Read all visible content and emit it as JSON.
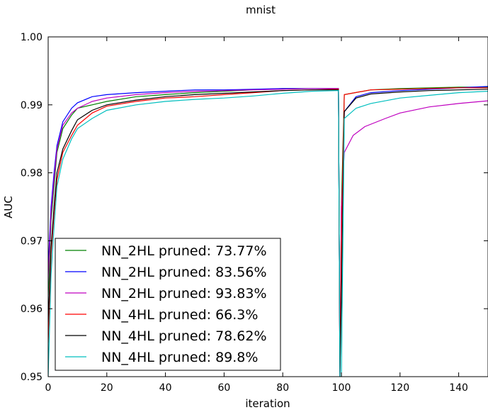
{
  "chart_data": {
    "type": "line",
    "title": "mnist",
    "xlabel": "iteration",
    "ylabel": "AUC",
    "xlim": [
      0,
      150
    ],
    "ylim": [
      0.95,
      1.0
    ],
    "xticks": [
      0,
      20,
      40,
      60,
      80,
      100,
      120,
      140
    ],
    "xtick_labels": [
      "0",
      "20",
      "40",
      "60",
      "80",
      "100",
      "120",
      "140"
    ],
    "yticks": [
      0.95,
      0.96,
      0.97,
      0.98,
      0.99,
      1.0
    ],
    "ytick_labels": [
      "0.95",
      "0.96",
      "0.97",
      "0.98",
      "0.99",
      "1.00"
    ],
    "grid": false,
    "legend_position": "lower-left",
    "series": [
      {
        "name": "NN_2HL pruned: 73.77%",
        "color": "#008000",
        "points": [
          [
            0,
            0.962
          ],
          [
            1,
            0.973
          ],
          [
            2,
            0.978
          ],
          [
            3,
            0.983
          ],
          [
            5,
            0.9865
          ],
          [
            8,
            0.9885
          ],
          [
            10,
            0.9895
          ],
          [
            15,
            0.99
          ],
          [
            20,
            0.9905
          ],
          [
            30,
            0.9912
          ],
          [
            40,
            0.9915
          ],
          [
            50,
            0.9918
          ],
          [
            60,
            0.992
          ],
          [
            70,
            0.9922
          ],
          [
            80,
            0.9924
          ],
          [
            90,
            0.9924
          ],
          [
            99,
            0.9924
          ],
          [
            99.5,
            0.95
          ],
          [
            100,
            0.975
          ],
          [
            101,
            0.9915
          ],
          [
            110,
            0.9922
          ],
          [
            120,
            0.9924
          ],
          [
            130,
            0.9925
          ],
          [
            140,
            0.9926
          ],
          [
            150,
            0.9926
          ]
        ]
      },
      {
        "name": "NN_2HL pruned: 83.56%",
        "color": "#0000ff",
        "points": [
          [
            0,
            0.966
          ],
          [
            1,
            0.975
          ],
          [
            2,
            0.98
          ],
          [
            3,
            0.984
          ],
          [
            5,
            0.9875
          ],
          [
            8,
            0.9895
          ],
          [
            10,
            0.9903
          ],
          [
            15,
            0.9912
          ],
          [
            20,
            0.9915
          ],
          [
            30,
            0.9918
          ],
          [
            40,
            0.992
          ],
          [
            50,
            0.9922
          ],
          [
            60,
            0.9922
          ],
          [
            70,
            0.9923
          ],
          [
            80,
            0.9924
          ],
          [
            90,
            0.9924
          ],
          [
            99,
            0.9924
          ],
          [
            99.5,
            0.95
          ],
          [
            100,
            0.972
          ],
          [
            101,
            0.989
          ],
          [
            105,
            0.9912
          ],
          [
            110,
            0.9918
          ],
          [
            120,
            0.9921
          ],
          [
            130,
            0.9923
          ],
          [
            140,
            0.9925
          ],
          [
            150,
            0.9927
          ]
        ]
      },
      {
        "name": "NN_2HL pruned: 93.83%",
        "color": "#bf00bf",
        "points": [
          [
            0,
            0.964
          ],
          [
            1,
            0.974
          ],
          [
            2,
            0.979
          ],
          [
            3,
            0.9835
          ],
          [
            5,
            0.987
          ],
          [
            8,
            0.9888
          ],
          [
            10,
            0.9895
          ],
          [
            15,
            0.9905
          ],
          [
            20,
            0.991
          ],
          [
            30,
            0.9915
          ],
          [
            40,
            0.9918
          ],
          [
            50,
            0.992
          ],
          [
            60,
            0.9921
          ],
          [
            70,
            0.9922
          ],
          [
            80,
            0.9923
          ],
          [
            90,
            0.9924
          ],
          [
            99,
            0.9924
          ],
          [
            99.5,
            0.95
          ],
          [
            100,
            0.975
          ],
          [
            101,
            0.983
          ],
          [
            104,
            0.9855
          ],
          [
            108,
            0.9868
          ],
          [
            115,
            0.988
          ],
          [
            120,
            0.9888
          ],
          [
            130,
            0.9897
          ],
          [
            140,
            0.9902
          ],
          [
            150,
            0.9906
          ]
        ]
      },
      {
        "name": "NN_4HL pruned: 66.3%",
        "color": "#ff0000",
        "points": [
          [
            0,
            0.955
          ],
          [
            1,
            0.968
          ],
          [
            2,
            0.974
          ],
          [
            3,
            0.979
          ],
          [
            5,
            0.983
          ],
          [
            8,
            0.9855
          ],
          [
            10,
            0.987
          ],
          [
            15,
            0.9888
          ],
          [
            20,
            0.9898
          ],
          [
            30,
            0.9905
          ],
          [
            40,
            0.991
          ],
          [
            50,
            0.9912
          ],
          [
            60,
            0.9915
          ],
          [
            70,
            0.9918
          ],
          [
            80,
            0.9921
          ],
          [
            90,
            0.9922
          ],
          [
            99,
            0.9923
          ],
          [
            99.5,
            0.95
          ],
          [
            100,
            0.97
          ],
          [
            101,
            0.9915
          ],
          [
            110,
            0.9922
          ],
          [
            120,
            0.9923
          ],
          [
            130,
            0.9924
          ],
          [
            140,
            0.9925
          ],
          [
            150,
            0.9925
          ]
        ]
      },
      {
        "name": "NN_4HL pruned: 78.62%",
        "color": "#000000",
        "points": [
          [
            0,
            0.958
          ],
          [
            1,
            0.969
          ],
          [
            2,
            0.975
          ],
          [
            3,
            0.98
          ],
          [
            5,
            0.9835
          ],
          [
            8,
            0.9862
          ],
          [
            10,
            0.9878
          ],
          [
            15,
            0.9892
          ],
          [
            20,
            0.99
          ],
          [
            30,
            0.9907
          ],
          [
            40,
            0.9912
          ],
          [
            50,
            0.9915
          ],
          [
            60,
            0.9917
          ],
          [
            70,
            0.9919
          ],
          [
            80,
            0.9921
          ],
          [
            90,
            0.9922
          ],
          [
            99,
            0.9922
          ],
          [
            99.5,
            0.95
          ],
          [
            100,
            0.9615
          ],
          [
            101,
            0.989
          ],
          [
            105,
            0.991
          ],
          [
            110,
            0.9916
          ],
          [
            120,
            0.9919
          ],
          [
            130,
            0.9921
          ],
          [
            140,
            0.9922
          ],
          [
            150,
            0.9923
          ]
        ]
      },
      {
        "name": "NN_4HL pruned: 89.8%",
        "color": "#00bfbf",
        "points": [
          [
            0,
            0.95
          ],
          [
            1,
            0.965
          ],
          [
            2,
            0.972
          ],
          [
            3,
            0.978
          ],
          [
            5,
            0.982
          ],
          [
            8,
            0.985
          ],
          [
            10,
            0.9865
          ],
          [
            15,
            0.988
          ],
          [
            20,
            0.9892
          ],
          [
            30,
            0.99
          ],
          [
            40,
            0.9905
          ],
          [
            50,
            0.9908
          ],
          [
            60,
            0.991
          ],
          [
            70,
            0.9913
          ],
          [
            80,
            0.9917
          ],
          [
            90,
            0.992
          ],
          [
            99,
            0.9921
          ],
          [
            99.5,
            0.95
          ],
          [
            100,
            0.95
          ],
          [
            101,
            0.988
          ],
          [
            105,
            0.9895
          ],
          [
            110,
            0.9902
          ],
          [
            120,
            0.991
          ],
          [
            130,
            0.9914
          ],
          [
            140,
            0.9918
          ],
          [
            150,
            0.992
          ]
        ]
      }
    ]
  }
}
